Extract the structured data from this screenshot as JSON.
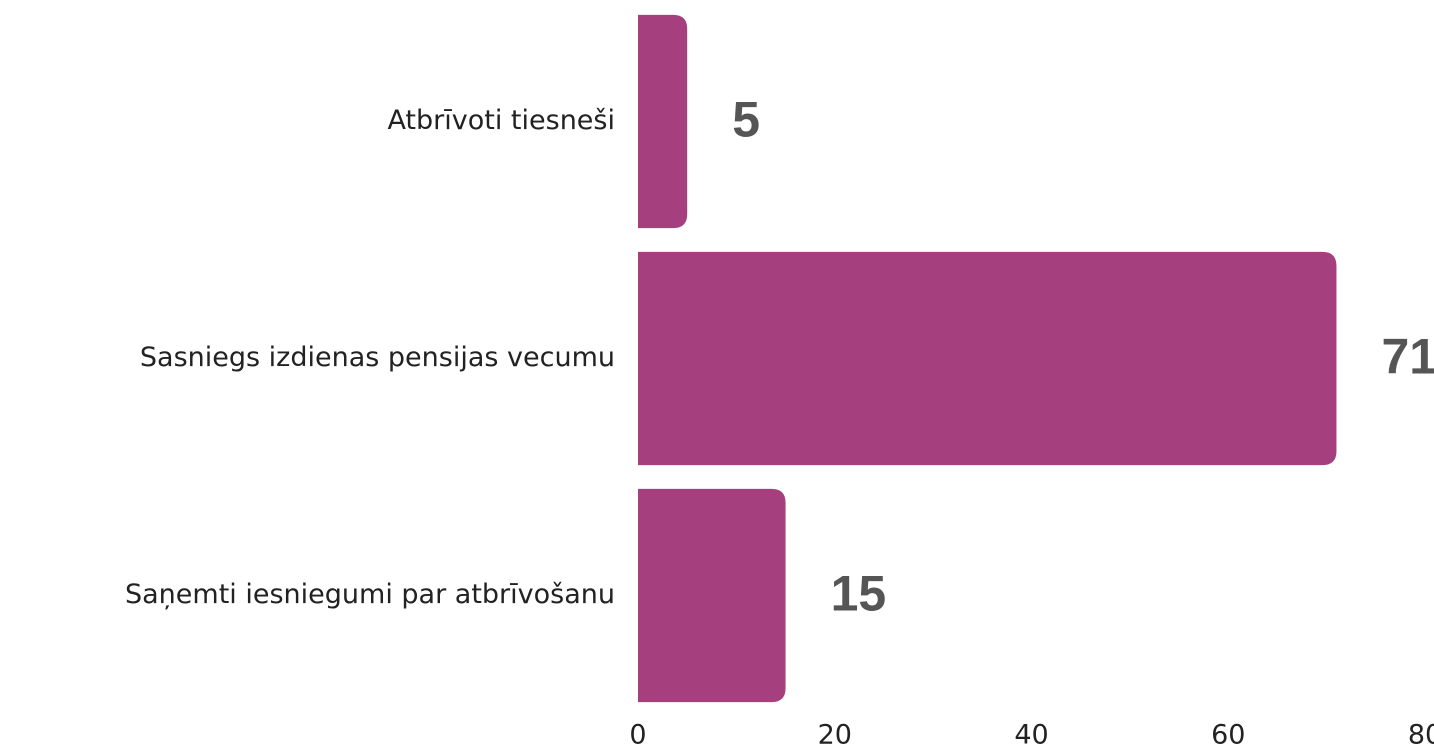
{
  "chart_data": {
    "type": "bar",
    "orientation": "horizontal",
    "categories": [
      "Atbrīvoti tiesneši",
      "Sasniegs izdienas pensijas vecumu",
      "Saņemti iesniegumi par atbrīvošanu"
    ],
    "values": [
      5,
      71,
      15
    ],
    "color": "#a63f7d",
    "xlim": [
      0,
      80
    ],
    "xticks": [
      0,
      20,
      40,
      60,
      80
    ],
    "grid": false
  }
}
